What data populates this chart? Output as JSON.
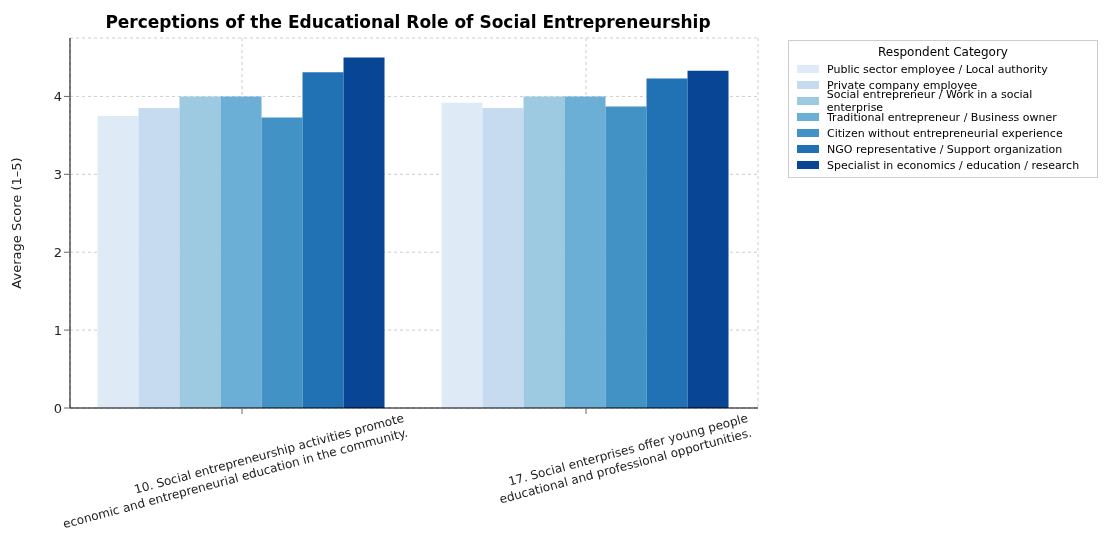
{
  "chart_data": {
    "type": "bar",
    "title": "Perceptions of the Educational Role of Social Entrepreneurship",
    "ylabel": "Average Score (1–5)",
    "legend_title": "Respondent Category",
    "categories": [
      "10. Social entrepreneurship activities promote\neconomic and entrepreneurial education in the community.",
      "17. Social enterprises offer young people\neducational and professional opportunities."
    ],
    "series": [
      {
        "name": "Public sector employee / Local authority",
        "color": "#deebf7",
        "values": [
          3.75,
          3.92
        ]
      },
      {
        "name": "Private company employee",
        "color": "#c6dbef",
        "values": [
          3.85,
          3.85
        ]
      },
      {
        "name": "Social entrepreneur / Work in a social enterprise",
        "color": "#9ecae1",
        "values": [
          4.0,
          4.0
        ]
      },
      {
        "name": "Traditional entrepreneur / Business owner",
        "color": "#6baed6",
        "values": [
          4.0,
          4.0
        ]
      },
      {
        "name": "Citizen without entrepreneurial experience",
        "color": "#4292c6",
        "values": [
          3.73,
          3.87
        ]
      },
      {
        "name": "NGO representative / Support organization",
        "color": "#2171b5",
        "values": [
          4.31,
          4.23
        ]
      },
      {
        "name": "Specialist in economics / education / research",
        "color": "#084594",
        "values": [
          4.5,
          4.33
        ]
      }
    ],
    "ylim": [
      0,
      4.75
    ],
    "yticks": [
      0,
      1,
      2,
      3,
      4
    ],
    "grid": true,
    "legend": "top right"
  }
}
